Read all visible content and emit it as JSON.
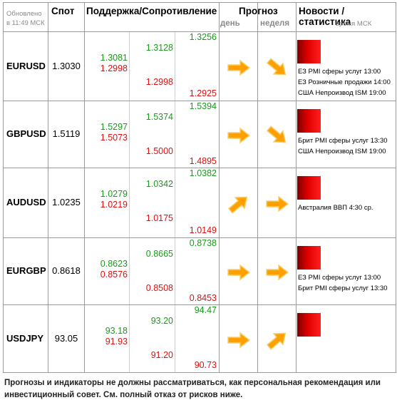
{
  "header": {
    "updated_line1": "Обновлено",
    "updated_line2": "в 11:49 МСК",
    "spot": "Спот",
    "support_resistance": "Поддержка/Сопротивление",
    "forecast": "Прогноз",
    "forecast_day": "день",
    "forecast_week": "неделя",
    "news": "Новости / статистика",
    "news_time": "время МСК"
  },
  "rows": [
    {
      "pair": "EURUSD",
      "spot": "1.3030",
      "s1": "1.3081",
      "s2": "1.2998",
      "s3": "1.3128",
      "s4": "1.2998",
      "s5": "1.3256",
      "s6": "1.2925",
      "day": "right",
      "week": "down-right",
      "news": [
        "ЕЗ PMI сферы услуг 13:00",
        "ЕЗ Розничные продажи 14:00",
        "США Непроизвод ISM 19:00"
      ]
    },
    {
      "pair": "GBPUSD",
      "spot": "1.5119",
      "s1": "1.5297",
      "s2": "1.5073",
      "s3": "1.5374",
      "s4": "1.5000",
      "s5": "1.5394",
      "s6": "1.4895",
      "day": "right",
      "week": "down-right",
      "news": [
        "Брит PMI сферы услуг 13:30",
        "США Непроизвод ISM 19:00"
      ]
    },
    {
      "pair": "AUDUSD",
      "spot": "1.0235",
      "s1": "1.0279",
      "s2": "1.0219",
      "s3": "1.0342",
      "s4": "1.0175",
      "s5": "1.0382",
      "s6": "1.0149",
      "day": "up-right",
      "week": "right",
      "news": [
        "Австралия ВВП 4:30 ср."
      ]
    },
    {
      "pair": "EURGBP",
      "spot": "0.8618",
      "s1": "0.8623",
      "s2": "0.8576",
      "s3": "0.8665",
      "s4": "0.8508",
      "s5": "0.8738",
      "s6": "0.8453",
      "day": "right",
      "week": "right",
      "news": [
        "ЕЗ PMI сферы услуг 13:00",
        "Брит PMI сферы услуг 13:30"
      ]
    },
    {
      "pair": "USDJPY",
      "spot": "93.05",
      "s1": "93.18",
      "s2": "91.93",
      "s3": "93.20",
      "s4": "91.20",
      "s5": "94.47",
      "s6": "90.73",
      "day": "right",
      "week": "up-right",
      "news": []
    }
  ],
  "disclaimer": "Прогнозы и индикаторы не должны рассматриваться, как персональная рекомендация или инвестиционный совет. См. полный отказ от рисков ниже.",
  "colors": {
    "support": "#1a9a1a",
    "resistance": "#e01010",
    "arrow": "#ffa000",
    "news_box": "#e00000"
  }
}
